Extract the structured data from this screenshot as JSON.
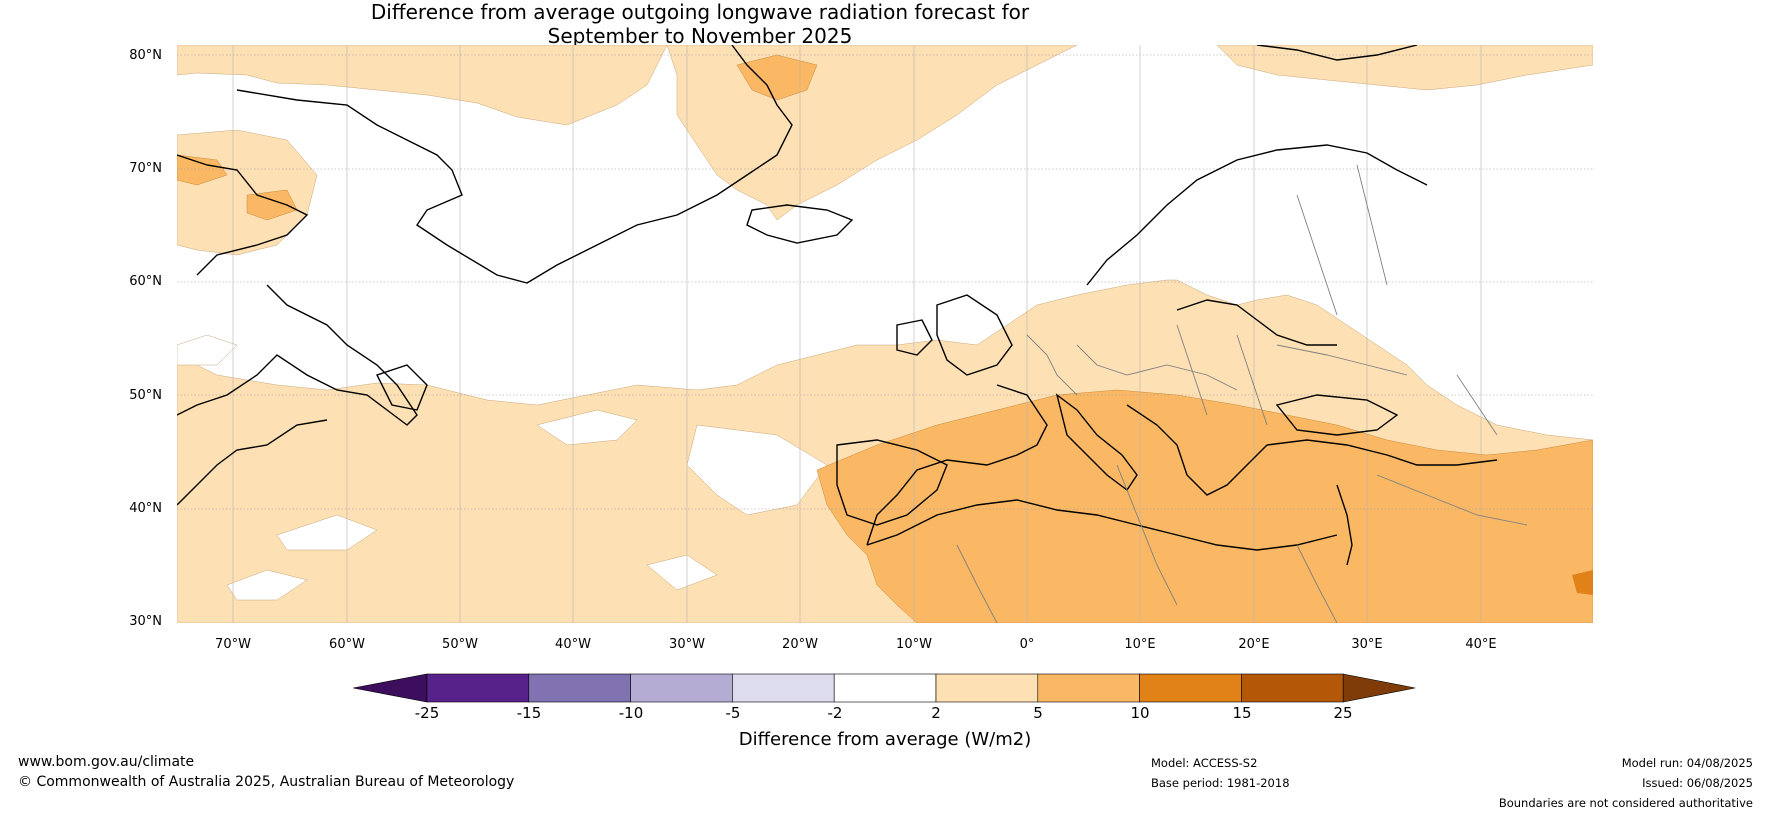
{
  "title": {
    "line1": "Difference from average outgoing longwave radiation forecast for",
    "line2": "September to November 2025"
  },
  "lat_labels": [
    "80°N",
    "70°N",
    "60°N",
    "50°N",
    "40°N",
    "30°N"
  ],
  "lon_labels": [
    "70°W",
    "60°W",
    "50°W",
    "40°W",
    "30°W",
    "20°W",
    "10°W",
    "0°",
    "10°E",
    "20°E",
    "30°E",
    "40°E"
  ],
  "legend": {
    "ticks": [
      "-25",
      "-15",
      "-10",
      "-5",
      "-2",
      "2",
      "5",
      "10",
      "15",
      "25"
    ],
    "colors": [
      "#3d0d5e",
      "#57238a",
      "#8173b2",
      "#b4acd3",
      "#dcdcee",
      "#ffffff",
      "#fde0b4",
      "#fbb864",
      "#e08217",
      "#b35806",
      "#7f3b08"
    ],
    "label": "Difference from average (W/m2)"
  },
  "map": {
    "colors": {
      "category_2_5": "#fde0b4",
      "category_5_10": "#fbb864",
      "category_10_15": "#e08217",
      "coastline": "#000000",
      "border": "#808080",
      "graticule": "#999999"
    }
  },
  "footer": {
    "url": "www.bom.gov.au/climate",
    "copyright": "© Commonwealth of Australia 2025, Australian Bureau of Meteorology",
    "model": "Model: ACCESS-S2",
    "base_period": "Base period: 1981-2018",
    "model_run": "Model run: 04/08/2025",
    "issued": "Issued: 06/08/2025",
    "disclaimer": "Boundaries are not considered authoritative"
  }
}
